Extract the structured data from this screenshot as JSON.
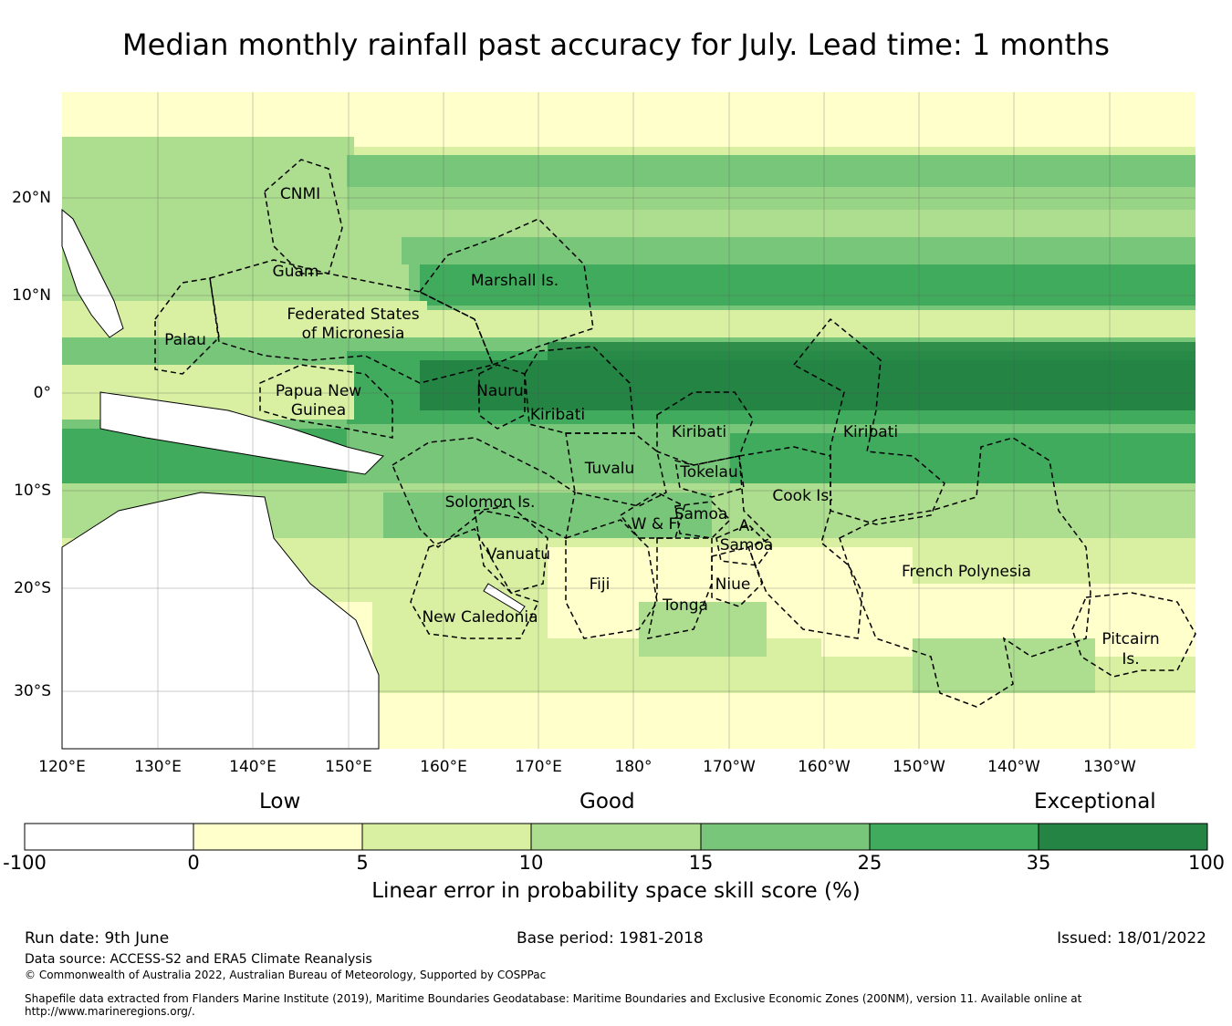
{
  "title": "Median monthly rainfall past accuracy for July. Lead time: 1 months",
  "map": {
    "lon_labels": [
      "120°E",
      "130°E",
      "140°E",
      "150°E",
      "160°E",
      "170°E",
      "180°",
      "170°W",
      "160°W",
      "150°W",
      "140°W",
      "130°W"
    ],
    "lat_labels": [
      "20°N",
      "10°N",
      "0°",
      "10°S",
      "20°S",
      "30°S"
    ],
    "regions": {
      "cnmi": "CNMI",
      "guam": "Guam",
      "marshall": "Marshall Is.",
      "palau": "Palau",
      "fsm_1": "Federated States",
      "fsm_2": "of Micronesia",
      "png_1": "Papua New",
      "png_2": "Guinea",
      "nauru": "Nauru",
      "kiribati_w": "Kiribati",
      "kiribati_c": "Kiribati",
      "kiribati_e": "Kiribati",
      "tuvalu": "Tuvalu",
      "tokelau": "Tokelau",
      "solomon": "Solomon Is.",
      "samoa": "Samoa",
      "wf": "W & F",
      "asamoa_1": "A.",
      "asamoa_2": "Samoa",
      "cook": "Cook Is.",
      "vanuatu": "Vanuatu",
      "fiji": "Fiji",
      "niue": "Niue",
      "tonga": "Tonga",
      "new_caledonia": "New Caledonia",
      "french_polynesia": "French Polynesia",
      "pitcairn_1": "Pitcairn",
      "pitcairn_2": "Is."
    }
  },
  "legend": {
    "categories": [
      "Low",
      "Good",
      "Exceptional"
    ],
    "ticks": [
      "-100",
      "0",
      "5",
      "10",
      "15",
      "25",
      "35",
      "100"
    ],
    "colors": [
      "#ffffff",
      "#ffffcc",
      "#d9f0a3",
      "#addd8e",
      "#78c679",
      "#41ab5d",
      "#238443"
    ],
    "title": "Linear error in probability space skill score (%)"
  },
  "footer": {
    "run_date": "Run date: 9th June",
    "base_period": "Base period: 1981-2018",
    "issued": "Issued: 18/01/2022",
    "data_source": "Data source: ACCESS-S2 and ERA5 Climate Reanalysis",
    "copyright": "© Commonwealth of Australia 2022, Australian Bureau of Meteorology, Supported by COSPPac",
    "shapefile": "Shapefile data extracted from Flanders Marine Institute (2019), Maritime Boundaries Geodatabase: Maritime Boundaries and Exclusive Economic Zones (200NM), version 11. Available online at http://www.marineregions.org/."
  }
}
